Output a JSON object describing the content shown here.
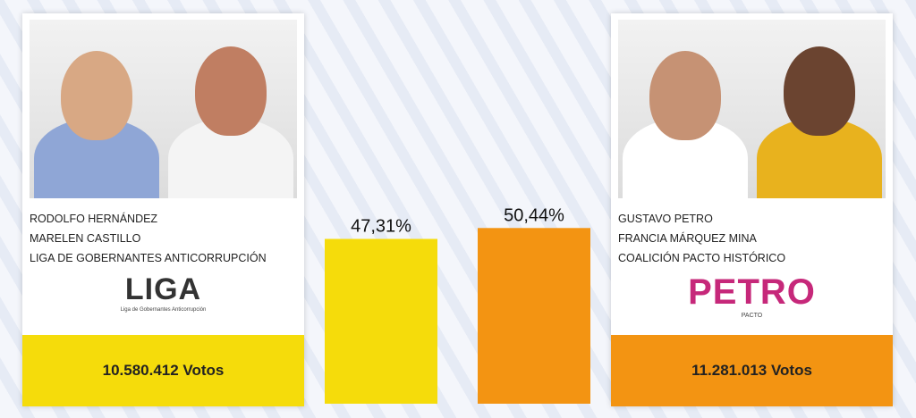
{
  "candidates": [
    {
      "names": [
        "RODOLFO HERNÁNDEZ",
        "MARELEN CASTILLO"
      ],
      "party": "LIGA DE GOBERNANTES ANTICORRUPCIÓN",
      "logo": "LIGA",
      "logo_caption": "Liga de Gobernantes Anticorrupción",
      "votes": "10.580.412 Votos",
      "share": 47.31,
      "share_label": "47,31%",
      "color": "#f5dc0b"
    },
    {
      "names": [
        "GUSTAVO PETRO",
        "FRANCIA MÁRQUEZ MINA"
      ],
      "party": "COALICIÓN PACTO HISTÓRICO",
      "logo": "PETRO",
      "logo_caption": "PACTO",
      "votes": "11.281.013 Votos",
      "share": 50.44,
      "share_label": "50,44%",
      "color": "#f39412"
    }
  ]
}
